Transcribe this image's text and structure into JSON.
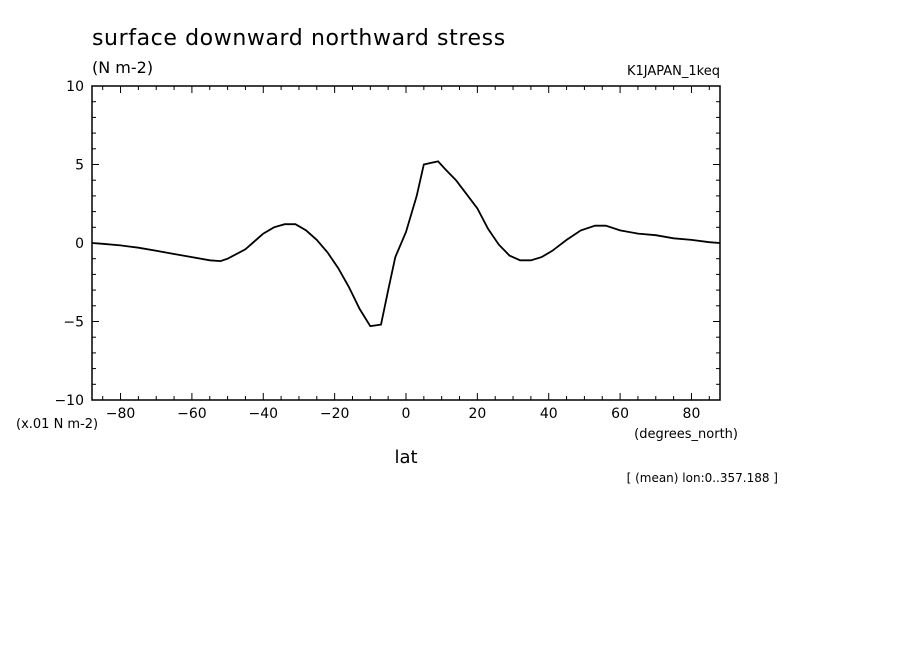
{
  "chart_data": {
    "type": "line",
    "title": "surface downward northward stress",
    "units": "(N m-2)",
    "dataset_label": "K1JAPAN_1keq",
    "scale_note": "(x.01 N m-2)",
    "xlabel": "lat",
    "xunits": "(degrees_north)",
    "footnote": "[ (mean) lon:0..357.188 ]",
    "xlim": [
      -88,
      88
    ],
    "ylim": [
      -10,
      10
    ],
    "xticks": [
      -80,
      -60,
      -40,
      -20,
      0,
      20,
      40,
      60,
      80
    ],
    "yticks": [
      -10,
      -5,
      0,
      5,
      10
    ],
    "xtick_labels": [
      "−80",
      "−60",
      "−40",
      "−20",
      "0",
      "20",
      "40",
      "60",
      "80"
    ],
    "ytick_labels": [
      "−10",
      "−5",
      "0",
      "5",
      "10"
    ],
    "grid": false,
    "series": [
      {
        "x": [
          -88,
          -85,
          -80,
          -75,
          -70,
          -65,
          -60,
          -55,
          -52,
          -50,
          -45,
          -40,
          -37,
          -34,
          -31,
          -28,
          -25,
          -22,
          -19,
          -16,
          -13,
          -10,
          -7,
          -5,
          -3,
          0,
          3,
          5,
          7,
          9,
          11,
          14,
          17,
          20,
          23,
          26,
          29,
          32,
          35,
          38,
          41,
          45,
          49,
          53,
          56,
          60,
          65,
          70,
          75,
          80,
          85,
          88
        ],
        "y": [
          0.0,
          -0.05,
          -0.15,
          -0.3,
          -0.5,
          -0.7,
          -0.9,
          -1.1,
          -1.15,
          -1.0,
          -0.4,
          0.6,
          1.0,
          1.2,
          1.2,
          0.8,
          0.2,
          -0.6,
          -1.6,
          -2.8,
          -4.2,
          -5.3,
          -5.2,
          -3.0,
          -0.9,
          0.7,
          3.0,
          5.0,
          5.1,
          5.2,
          4.7,
          4.0,
          3.1,
          2.2,
          0.9,
          -0.1,
          -0.8,
          -1.1,
          -1.1,
          -0.9,
          -0.5,
          0.2,
          0.8,
          1.1,
          1.1,
          0.8,
          0.6,
          0.5,
          0.3,
          0.2,
          0.05,
          0.0
        ]
      }
    ]
  }
}
